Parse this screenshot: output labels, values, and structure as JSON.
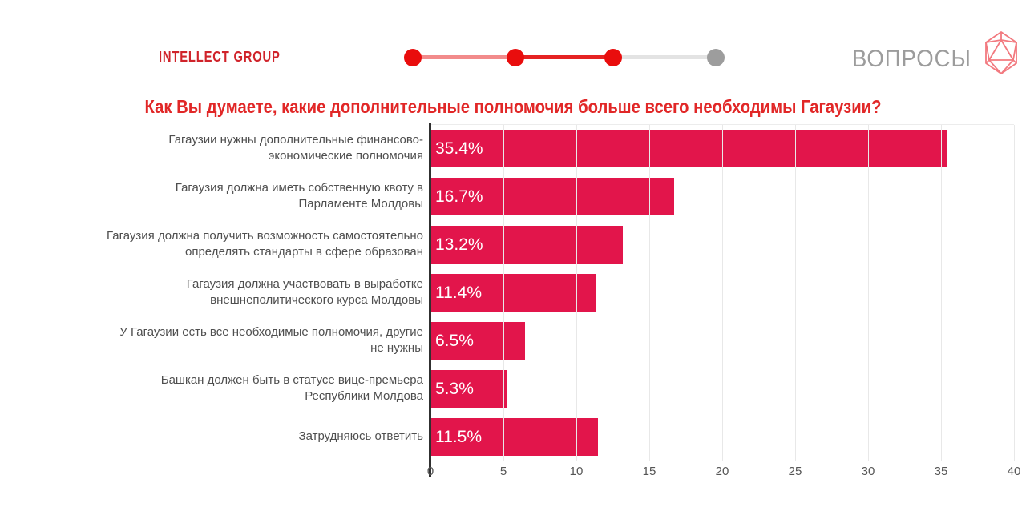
{
  "header": {
    "logo_text": "INTELLECT GROUP",
    "brand_name": "ВОПРОСЫ",
    "stepper": {
      "dots": [
        "#e90d0d",
        "#e90d0d",
        "#e90d0d",
        "#9d9d9d"
      ],
      "connectors": [
        "#f28b8b",
        "#e52222",
        "#e3e3e3"
      ]
    }
  },
  "colors": {
    "bar": "#e2154b",
    "title": "#e12727",
    "logo": "#d0232a",
    "brand_gray": "#9c9c9c",
    "brand_square_pink": "#f2797f",
    "category_label": "#4f4f4f",
    "axis": "#303030",
    "grid": "#e8e8e8"
  },
  "chart_data": {
    "type": "bar",
    "orientation": "horizontal",
    "title": "Как Вы думаете, какие дополнительные полномочия больше всего необходимы Гагаузии?",
    "categories": [
      "Гагаузии нужны дополнительные финансово-экономические полномочия",
      "Гагаузия должна иметь собственную квоту в Парламенте Молдовы",
      "Гагаузия должна получить возможность самостоятельно определять стандарты в сфере образован",
      "Гагаузия должна участвовать в выработке внешнеполитического курса Молдовы",
      "У Гагаузии есть все необходимые полномочия, другие не нужны",
      "Башкан должен быть в статусе вице-премьера Республики Молдова",
      "Затрудняюсь ответить"
    ],
    "values": [
      35.4,
      16.7,
      13.2,
      11.4,
      6.5,
      5.3,
      11.5
    ],
    "value_labels": [
      "35.4%",
      "16.7%",
      "13.2%",
      "11.4%",
      "6.5%",
      "5.3%",
      "11.5%"
    ],
    "xlim": [
      0,
      40
    ],
    "x_ticks": [
      0,
      5,
      10,
      15,
      20,
      25,
      30,
      35,
      40
    ],
    "xlabel": "",
    "ylabel": "",
    "grid": true,
    "legend": false
  }
}
